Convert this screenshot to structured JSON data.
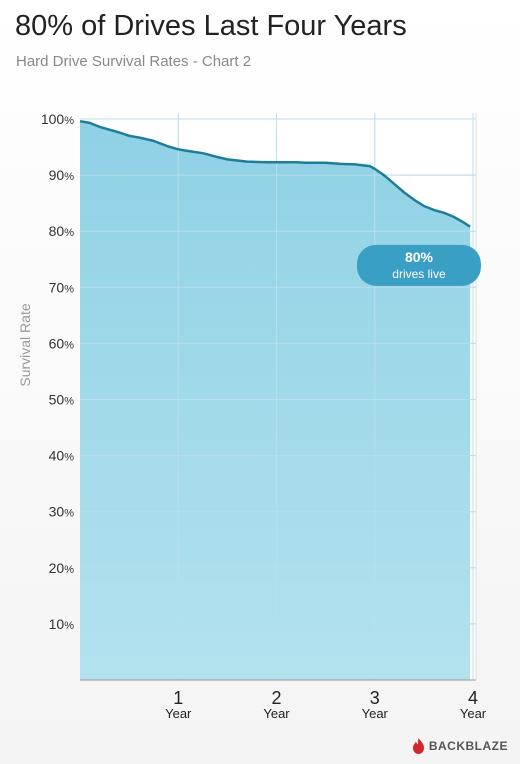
{
  "header": {
    "title": "80% of Drives Last Four Years",
    "subtitle": "Hard Drive Survival Rates - Chart 2"
  },
  "brand": {
    "name": "BACKBLAZE",
    "icon": "flame-icon",
    "color": "#d0282e"
  },
  "colors": {
    "fill": "#93d3e6",
    "line": "#1f7d9a",
    "callout": "#3a9fc4",
    "grid": "#b9dfea"
  },
  "chart_data": {
    "type": "area",
    "title": "80% of Drives Last Four Years",
    "subtitle": "Hard Drive Survival Rates - Chart 2",
    "ylabel": "Survival Rate",
    "xlabel": "",
    "xlim": [
      0,
      4
    ],
    "ylim": [
      0,
      100
    ],
    "grid": true,
    "y_ticks": [
      10,
      20,
      30,
      40,
      50,
      60,
      70,
      80,
      90,
      100
    ],
    "y_tick_suffix": "%",
    "x_ticks": [
      {
        "value": 1,
        "label": "1",
        "unit": "Year"
      },
      {
        "value": 2,
        "label": "2",
        "unit": "Year"
      },
      {
        "value": 3,
        "label": "3",
        "unit": "Year"
      },
      {
        "value": 4,
        "label": "4",
        "unit": "Year"
      }
    ],
    "series": [
      {
        "x": [
          0,
          0.1,
          0.2,
          0.3,
          0.4,
          0.5,
          0.6,
          0.75,
          0.9,
          1.0,
          1.1,
          1.25,
          1.4,
          1.5,
          1.7,
          1.9,
          2.0,
          2.2,
          2.3,
          2.5,
          2.65,
          2.8,
          2.95,
          3.0,
          3.1,
          3.2,
          3.3,
          3.4,
          3.5,
          3.6,
          3.7,
          3.8,
          3.9,
          3.97
        ],
        "values": [
          99.6,
          99.3,
          98.6,
          98.1,
          97.6,
          97.0,
          96.7,
          96.1,
          95.1,
          94.6,
          94.3,
          93.9,
          93.2,
          92.8,
          92.4,
          92.3,
          92.3,
          92.3,
          92.2,
          92.2,
          92.0,
          91.9,
          91.6,
          91.1,
          89.9,
          88.4,
          86.9,
          85.6,
          84.5,
          83.8,
          83.3,
          82.6,
          81.6,
          80.8
        ]
      }
    ],
    "annotation": {
      "x": 3.45,
      "y": 74,
      "value": "80%",
      "text": "drives live"
    }
  }
}
